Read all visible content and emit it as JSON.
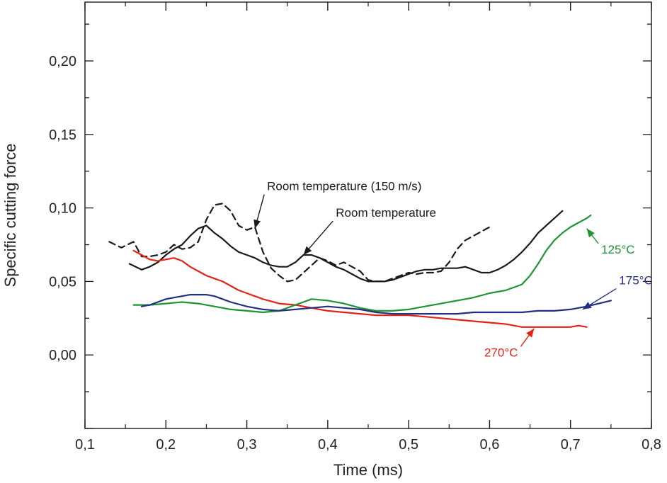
{
  "chart_data": {
    "type": "line",
    "title": "",
    "xlabel": "Time (ms)",
    "ylabel": "Specific cutting force",
    "xlim": [
      0.1,
      0.8
    ],
    "ylim": [
      -0.05,
      0.24
    ],
    "grid": false,
    "legend": "none",
    "x_ticks": [
      0.1,
      0.2,
      0.3,
      0.4,
      0.5,
      0.6,
      0.7,
      0.8
    ],
    "x_tick_labels": [
      "0,1",
      "0,2",
      "0,3",
      "0,4",
      "0,5",
      "0,6",
      "0,7",
      "0,8"
    ],
    "y_ticks": [
      0.0,
      0.05,
      0.1,
      0.15,
      0.2
    ],
    "y_tick_labels": [
      "0,00",
      "0,05",
      "0,10",
      "0,15",
      "0,20"
    ],
    "series": [
      {
        "color": "#1a1a1a",
        "dash": true,
        "x": [
          0.13,
          0.145,
          0.16,
          0.17,
          0.18,
          0.19,
          0.2,
          0.21,
          0.22,
          0.23,
          0.24,
          0.25,
          0.26,
          0.27,
          0.28,
          0.29,
          0.3,
          0.31,
          0.32,
          0.33,
          0.34,
          0.35,
          0.36,
          0.37,
          0.38,
          0.39,
          0.4,
          0.41,
          0.42,
          0.43,
          0.44,
          0.45,
          0.46,
          0.47,
          0.48,
          0.49,
          0.5,
          0.51,
          0.52,
          0.53,
          0.54,
          0.55,
          0.56,
          0.57,
          0.58,
          0.59,
          0.6
        ],
        "y": [
          0.077,
          0.073,
          0.077,
          0.067,
          0.067,
          0.068,
          0.07,
          0.075,
          0.072,
          0.073,
          0.077,
          0.092,
          0.102,
          0.103,
          0.098,
          0.088,
          0.085,
          0.087,
          0.07,
          0.059,
          0.054,
          0.05,
          0.051,
          0.056,
          0.061,
          0.066,
          0.064,
          0.061,
          0.063,
          0.06,
          0.057,
          0.051,
          0.05,
          0.05,
          0.052,
          0.054,
          0.056,
          0.055,
          0.056,
          0.056,
          0.057,
          0.063,
          0.072,
          0.078,
          0.081,
          0.084,
          0.087
        ]
      },
      {
        "color": "#1a1a1a",
        "dash": false,
        "x": [
          0.155,
          0.17,
          0.18,
          0.19,
          0.2,
          0.21,
          0.22,
          0.23,
          0.24,
          0.25,
          0.26,
          0.27,
          0.28,
          0.29,
          0.3,
          0.31,
          0.32,
          0.33,
          0.34,
          0.35,
          0.36,
          0.37,
          0.38,
          0.39,
          0.4,
          0.41,
          0.42,
          0.43,
          0.44,
          0.45,
          0.46,
          0.47,
          0.48,
          0.49,
          0.5,
          0.51,
          0.52,
          0.53,
          0.54,
          0.55,
          0.56,
          0.57,
          0.58,
          0.59,
          0.6,
          0.61,
          0.62,
          0.63,
          0.64,
          0.65,
          0.66,
          0.67,
          0.68,
          0.69
        ],
        "y": [
          0.062,
          0.058,
          0.06,
          0.063,
          0.068,
          0.072,
          0.075,
          0.081,
          0.086,
          0.088,
          0.083,
          0.079,
          0.074,
          0.07,
          0.068,
          0.066,
          0.063,
          0.061,
          0.06,
          0.06,
          0.063,
          0.068,
          0.068,
          0.066,
          0.063,
          0.06,
          0.058,
          0.055,
          0.052,
          0.05,
          0.05,
          0.05,
          0.051,
          0.053,
          0.055,
          0.057,
          0.058,
          0.058,
          0.059,
          0.059,
          0.059,
          0.06,
          0.058,
          0.056,
          0.056,
          0.058,
          0.061,
          0.065,
          0.07,
          0.076,
          0.083,
          0.088,
          0.093,
          0.098
        ]
      },
      {
        "color": "#e32319",
        "dash": false,
        "x": [
          0.16,
          0.17,
          0.18,
          0.19,
          0.2,
          0.21,
          0.22,
          0.23,
          0.24,
          0.25,
          0.26,
          0.27,
          0.28,
          0.29,
          0.3,
          0.31,
          0.32,
          0.34,
          0.36,
          0.38,
          0.4,
          0.42,
          0.44,
          0.46,
          0.48,
          0.5,
          0.52,
          0.54,
          0.56,
          0.58,
          0.6,
          0.62,
          0.64,
          0.66,
          0.68,
          0.7,
          0.71,
          0.72
        ],
        "y": [
          0.071,
          0.068,
          0.065,
          0.064,
          0.065,
          0.066,
          0.064,
          0.06,
          0.057,
          0.054,
          0.052,
          0.05,
          0.047,
          0.044,
          0.042,
          0.04,
          0.038,
          0.035,
          0.034,
          0.032,
          0.03,
          0.029,
          0.028,
          0.027,
          0.027,
          0.027,
          0.026,
          0.025,
          0.024,
          0.023,
          0.022,
          0.021,
          0.019,
          0.019,
          0.019,
          0.019,
          0.02,
          0.019
        ]
      },
      {
        "color": "#1e9432",
        "dash": false,
        "x": [
          0.16,
          0.18,
          0.2,
          0.22,
          0.24,
          0.26,
          0.28,
          0.3,
          0.32,
          0.34,
          0.36,
          0.38,
          0.4,
          0.42,
          0.44,
          0.46,
          0.48,
          0.5,
          0.52,
          0.54,
          0.56,
          0.58,
          0.6,
          0.62,
          0.64,
          0.65,
          0.66,
          0.67,
          0.68,
          0.69,
          0.7,
          0.71,
          0.72,
          0.725
        ],
        "y": [
          0.034,
          0.034,
          0.035,
          0.036,
          0.035,
          0.033,
          0.031,
          0.03,
          0.029,
          0.03,
          0.034,
          0.038,
          0.037,
          0.035,
          0.032,
          0.03,
          0.03,
          0.031,
          0.033,
          0.035,
          0.037,
          0.039,
          0.042,
          0.044,
          0.048,
          0.054,
          0.062,
          0.071,
          0.078,
          0.083,
          0.087,
          0.09,
          0.093,
          0.095
        ]
      },
      {
        "color": "#23307f",
        "dash": false,
        "x": [
          0.17,
          0.18,
          0.19,
          0.2,
          0.21,
          0.22,
          0.23,
          0.24,
          0.25,
          0.26,
          0.27,
          0.28,
          0.3,
          0.32,
          0.34,
          0.36,
          0.38,
          0.4,
          0.42,
          0.44,
          0.46,
          0.48,
          0.5,
          0.52,
          0.54,
          0.56,
          0.58,
          0.6,
          0.62,
          0.64,
          0.66,
          0.68,
          0.7,
          0.72,
          0.75
        ],
        "y": [
          0.033,
          0.034,
          0.036,
          0.038,
          0.039,
          0.04,
          0.041,
          0.041,
          0.041,
          0.04,
          0.038,
          0.036,
          0.033,
          0.031,
          0.03,
          0.031,
          0.032,
          0.033,
          0.032,
          0.031,
          0.029,
          0.028,
          0.028,
          0.028,
          0.028,
          0.028,
          0.029,
          0.029,
          0.029,
          0.029,
          0.03,
          0.03,
          0.031,
          0.033,
          0.037
        ]
      }
    ],
    "annotations": [
      {
        "text": "Room temperature (150 m/s)",
        "color": "#1a1a1a",
        "at": [
          0.325,
          0.112
        ],
        "arrow_to": [
          0.31,
          0.086
        ],
        "anchor": "start"
      },
      {
        "text": "Room temperature",
        "color": "#1a1a1a",
        "at": [
          0.41,
          0.094
        ],
        "arrow_to": [
          0.37,
          0.068
        ],
        "anchor": "start"
      },
      {
        "text": "125°C",
        "color": "#1e9432",
        "at": [
          0.738,
          0.069
        ],
        "arrow_to": [
          0.72,
          0.086
        ],
        "anchor": "start"
      },
      {
        "text": "175°C",
        "color": "#23307f",
        "at": [
          0.76,
          0.048
        ],
        "arrow_to": [
          0.715,
          0.031
        ],
        "anchor": "start"
      },
      {
        "text": "270°C",
        "color": "#e32319",
        "at": [
          0.635,
          -0.001
        ],
        "arrow_to": [
          0.655,
          0.018
        ],
        "anchor": "end"
      }
    ]
  }
}
